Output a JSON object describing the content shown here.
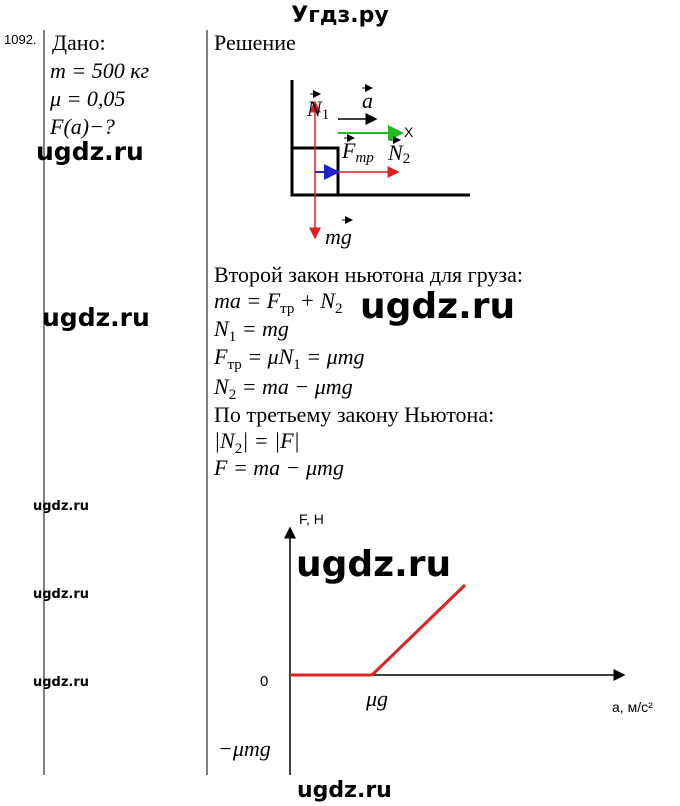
{
  "header": {
    "title": "Угдз.ру"
  },
  "problem_number": "1092.",
  "given": {
    "title": "Дано:",
    "lines": [
      "m = 500 кг",
      "μ = 0,05",
      "F(a)−?"
    ]
  },
  "solution": {
    "title": "Решение",
    "diagram": {
      "n1": [
        "N",
        "1"
      ],
      "a": "a",
      "x_axis": "X",
      "f_tr": [
        "F",
        "тр"
      ],
      "n2": [
        "N",
        "2"
      ],
      "mg": "mg"
    },
    "lines": [
      [
        "Второй закон ньютона для груза:"
      ],
      [
        "ma = F",
        "тр",
        " + N",
        "2"
      ],
      [
        "N",
        "1",
        " = mg"
      ],
      [
        "F",
        "тр",
        " = μN",
        "1",
        " = μmg"
      ],
      [
        "N",
        "2",
        " = ma − μmg"
      ],
      [
        "По третьему закону Ньютона:"
      ],
      [
        "|N",
        "2",
        "| = |F|"
      ],
      [
        "F = ma − μmg"
      ]
    ],
    "graph": {
      "y_axis_label": "F, Н",
      "origin": "0",
      "break_point": "μg",
      "x_axis_label": "а, м/с²",
      "intercept": "−μmg"
    }
  },
  "watermarks": [
    "ugdz.ru",
    "ugdz.ru",
    "ugdz.ru",
    "ugdz.ru",
    "ugdz.ru",
    "ugdz.ru",
    "ugdz.ru",
    "ugdz.ru"
  ]
}
